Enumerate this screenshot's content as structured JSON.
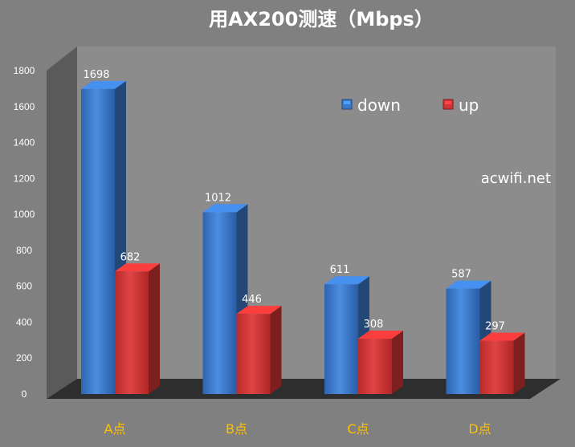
{
  "chart_data": {
    "type": "bar",
    "title": "用AX200测速（Mbps）",
    "categories": [
      "A点",
      "B点",
      "C点",
      "D点"
    ],
    "series": [
      {
        "name": "down",
        "values": [
          1698,
          1012,
          611,
          587
        ],
        "color": "#3a78c8"
      },
      {
        "name": "up",
        "values": [
          682,
          446,
          308,
          297
        ],
        "color": "#d03434"
      }
    ],
    "ylim": [
      0,
      1800
    ],
    "yticks": [
      0,
      200,
      400,
      600,
      800,
      1000,
      1200,
      1400,
      1600,
      1800
    ],
    "legend_position": "top-right",
    "grid": false,
    "style": "3d-column"
  },
  "watermark": "acwifi.net"
}
